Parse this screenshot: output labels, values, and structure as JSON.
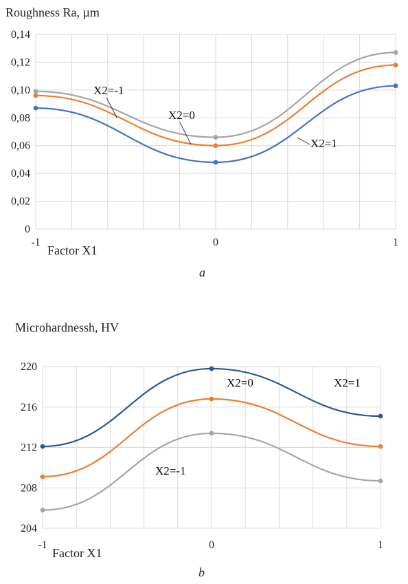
{
  "chart_data": [
    {
      "type": "line",
      "title": "",
      "ylabel": "Roughness Ra, µm",
      "xlabel": "Factor X1",
      "panel_label": "a",
      "x": [
        -1,
        0,
        1
      ],
      "xticks": [
        "-1",
        "0",
        "1"
      ],
      "ylim": [
        0,
        0.14
      ],
      "yticks": [
        "0",
        "0,02",
        "0,04",
        "0,06",
        "0,08",
        "0,10",
        "0,12",
        "0,14"
      ],
      "grid": true,
      "series": [
        {
          "name": "X2=-1",
          "color": "#a5a5a5",
          "values": [
            0.099,
            0.066,
            0.127
          ]
        },
        {
          "name": "X2=0",
          "color": "#ed7d31",
          "values": [
            0.096,
            0.06,
            0.118
          ]
        },
        {
          "name": "X2=1",
          "color": "#4472c4",
          "values": [
            0.087,
            0.048,
            0.103
          ]
        }
      ]
    },
    {
      "type": "line",
      "title": "",
      "ylabel": "Microhardnessh, HV",
      "xlabel": "Factor X1",
      "panel_label": "b",
      "x": [
        -1,
        0,
        1
      ],
      "xticks": [
        "-1",
        "0",
        "1"
      ],
      "ylim": [
        204,
        220
      ],
      "yticks": [
        "204",
        "208",
        "212",
        "216",
        "220"
      ],
      "grid": true,
      "series": [
        {
          "name": "X2=1",
          "color": "#2f5597",
          "values": [
            212.1,
            219.8,
            215.1
          ]
        },
        {
          "name": "X2=0",
          "color": "#ed7d31",
          "values": [
            209.1,
            216.8,
            212.1
          ]
        },
        {
          "name": "X2=-1",
          "color": "#a5a5a5",
          "values": [
            205.8,
            213.4,
            208.7
          ]
        }
      ]
    }
  ]
}
